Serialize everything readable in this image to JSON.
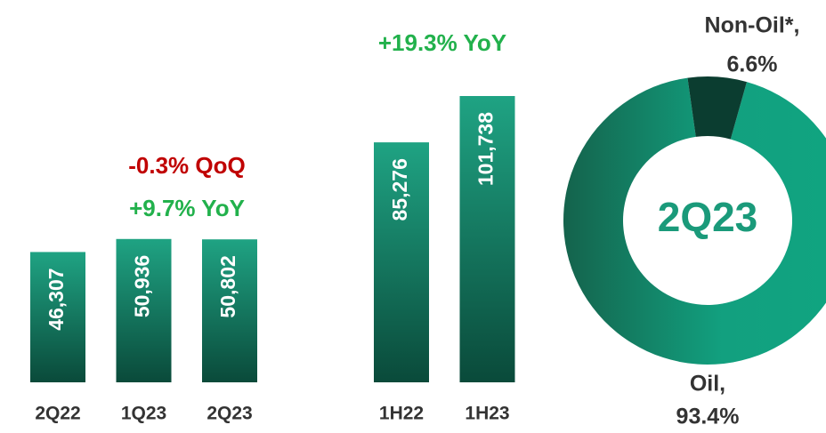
{
  "chart_data": [
    {
      "type": "bar",
      "categories": [
        "2Q22",
        "1Q23",
        "2Q23",
        null,
        "1H22",
        "1H23"
      ],
      "values": [
        46307,
        50936,
        50802,
        null,
        85276,
        101738
      ],
      "value_labels": [
        "46,307",
        "50,936",
        "50,802",
        null,
        "85,276",
        "101,738"
      ],
      "color_top": "#1fa383",
      "color_bottom": "#0a4a3a",
      "annotations": [
        {
          "text": "-0.3% QoQ",
          "color": "#c00000"
        },
        {
          "text": "+9.7% YoY",
          "color": "#22b14c"
        },
        {
          "text": "+19.3% YoY",
          "color": "#22b14c"
        }
      ]
    },
    {
      "type": "donut",
      "title": "2Q23",
      "categories": [
        "Oil,",
        "Non-Oil*,"
      ],
      "values": [
        93.4,
        6.6
      ],
      "value_labels": [
        "93.4%",
        "6.6%"
      ],
      "colors": [
        "#12a07f",
        "#0b3d30"
      ]
    }
  ]
}
